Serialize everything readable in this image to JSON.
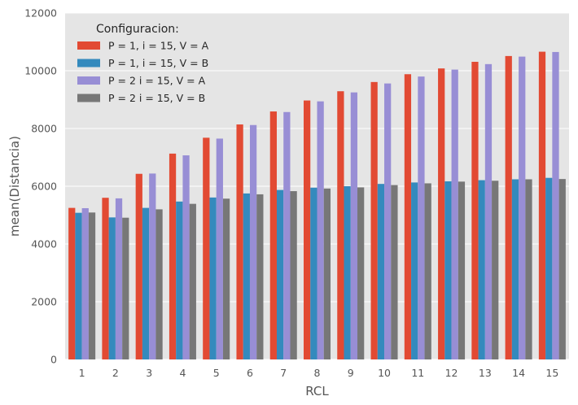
{
  "chart_data": {
    "type": "bar",
    "title": "",
    "xlabel": "RCL",
    "ylabel": "mean(Distancia)",
    "ylim": [
      0,
      12000
    ],
    "yticks": [
      0,
      2000,
      4000,
      6000,
      8000,
      10000,
      12000
    ],
    "grid": true,
    "legend_title": "Configuracion:",
    "legend_position": "top-left",
    "categories": [
      "1",
      "2",
      "3",
      "4",
      "5",
      "6",
      "7",
      "8",
      "9",
      "10",
      "11",
      "12",
      "13",
      "14",
      "15"
    ],
    "series": [
      {
        "name": "P = 1, i = 15, V = A",
        "color": "#E24A33",
        "values": [
          5250,
          5600,
          6430,
          7130,
          7680,
          8140,
          8590,
          8970,
          9290,
          9610,
          9880,
          10080,
          10310,
          10510,
          10660
        ]
      },
      {
        "name": "P = 1, i = 15, V = B",
        "color": "#348ABD",
        "values": [
          5080,
          4920,
          5250,
          5470,
          5610,
          5750,
          5870,
          5950,
          6000,
          6080,
          6130,
          6170,
          6210,
          6240,
          6290
        ]
      },
      {
        "name": "P = 2 i = 15, V = A",
        "color": "#988ED5",
        "values": [
          5240,
          5580,
          6440,
          7070,
          7650,
          8120,
          8570,
          8940,
          9250,
          9560,
          9800,
          10040,
          10230,
          10490,
          10650
        ]
      },
      {
        "name": "P = 2 i = 15, V = B",
        "color": "#777777",
        "values": [
          5090,
          4910,
          5200,
          5390,
          5570,
          5720,
          5830,
          5920,
          5960,
          6040,
          6100,
          6160,
          6190,
          6240,
          6250
        ]
      }
    ]
  }
}
